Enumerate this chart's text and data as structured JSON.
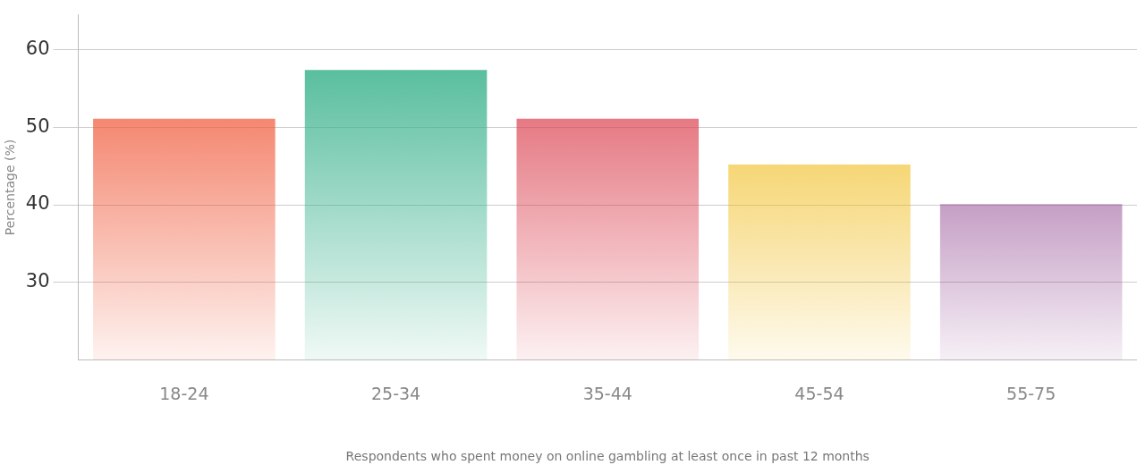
{
  "chart_data": {
    "type": "bar",
    "xlabel": "Respondents who spent money on online gambling at least once in past 12 months",
    "ylabel": "Percentage (%)",
    "categories": [
      "18-24",
      "25-34",
      "35-44",
      "45-54",
      "55-75"
    ],
    "values": [
      51.1,
      57.4,
      51.1,
      45.2,
      40.1
    ],
    "colors": [
      "#f05a3a",
      "#3db38e",
      "#dc4654",
      "#f0bb1a",
      "#8a3d8a"
    ],
    "ylim": [
      20,
      64.5
    ],
    "yticks": [
      30,
      40,
      50,
      60
    ],
    "grid": "y",
    "legend": false
  }
}
